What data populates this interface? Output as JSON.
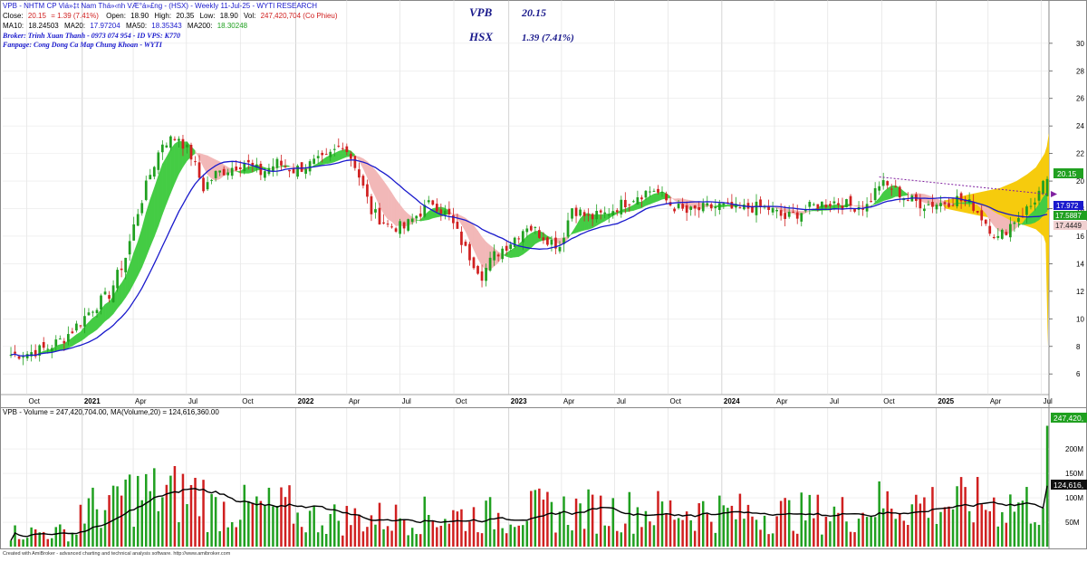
{
  "header": {
    "line1": "VPB - NHTM CP Viá»‡t Nam Thá»‹nh VÆ°á»£ng - (HSX) - Weekly 11-Jul-25 - WYTI RESEARCH",
    "close_label": "Close:",
    "close_value": "20.15",
    "change_value": "= 1.39  (7.41%)",
    "open_label": "Open:",
    "open_value": "18.90",
    "high_label": "High:",
    "high_value": "20.35",
    "low_label": "Low:",
    "low_value": "18.90",
    "vol_label": "Vol:",
    "vol_value": "247,420,704 (Co Phieu)",
    "ma10_label": "MA10:",
    "ma10_value": "18.24503",
    "ma20_label": "MA20:",
    "ma20_value": "17.97204",
    "ma50_label": "MA50:",
    "ma50_value": "18.35343",
    "ma200_label": "MA200:",
    "ma200_value": "18.30248",
    "broker": "Broker: Trinh Xuan Thanh - 0973 074 954 - ID VPS: K770",
    "fanpage": "Fanpage: Cong Dong Ca Map Chung Khoan - WYTI",
    "ticker": "VPB",
    "ticker_price": "20.15",
    "exchange": "HSX",
    "exchange_change": "1.39 (7.41%)"
  },
  "volume_header": "VPB - Volume = 247,420,704.00, MA(Volume,20) = 124,616,360.00",
  "footer": "Created with AmiBroker - advanced charting and technical analysis software. http://www.amibroker.com",
  "price_tags": {
    "last": "20.15",
    "ma_a": "17.972",
    "ma_b": "17.5887",
    "ma_c": "17.4449"
  },
  "volume_tags": {
    "last": "247,420,",
    "ma": "124,616,"
  },
  "colors": {
    "up": "#20a020",
    "down": "#d02020",
    "ma_blue": "#1a1acc",
    "band_green": "#44cc44",
    "band_pink": "#f2b8b8",
    "profile": "#f5c800",
    "trendline": "#8020a0",
    "vol_ma": "#000000",
    "tag_green": "#20a020",
    "tag_blue": "#1a1acc"
  },
  "chart_data": [
    {
      "type": "candlestick",
      "title": "VPB - NHTM CP Viá»‡t Nam Thá»‹nh VÆ°á»£ng - (HSX) - Weekly 11-Jul-25",
      "timeframe": "weekly",
      "x_ticks": [
        "Oct",
        "2021",
        "Apr",
        "Jul",
        "Oct",
        "2022",
        "Apr",
        "Jul",
        "Oct",
        "2023",
        "Apr",
        "Jul",
        "Oct",
        "2024",
        "Apr",
        "Jul",
        "Oct",
        "2025",
        "Apr",
        "Jul"
      ],
      "y_ticks": [
        6,
        8,
        10,
        12,
        14,
        16,
        18,
        20,
        22,
        24,
        26,
        28,
        30
      ],
      "ylim": [
        4.7,
        31.5
      ],
      "price_path": [
        [
          "2020-09-04",
          7.4
        ],
        [
          "2020-10-02",
          7.5
        ],
        [
          "2020-11-06",
          7.9
        ],
        [
          "2020-12-04",
          8.6
        ],
        [
          "2020-12-25",
          9.5
        ],
        [
          "2021-01-22",
          10.8
        ],
        [
          "2021-02-19",
          11.8
        ],
        [
          "2021-03-19",
          14.5
        ],
        [
          "2021-04-09",
          17.8
        ],
        [
          "2021-04-30",
          20.5
        ],
        [
          "2021-05-21",
          22.8
        ],
        [
          "2021-06-18",
          23.2
        ],
        [
          "2021-07-09",
          21.8
        ],
        [
          "2021-07-30",
          19.5
        ],
        [
          "2021-08-20",
          20.5
        ],
        [
          "2021-09-17",
          21.0
        ],
        [
          "2021-10-08",
          21.4
        ],
        [
          "2021-11-05",
          20.6
        ],
        [
          "2021-12-03",
          21.3
        ],
        [
          "2021-12-31",
          20.8
        ],
        [
          "2022-01-28",
          21.2
        ],
        [
          "2022-02-25",
          21.6
        ],
        [
          "2022-03-25",
          22.8
        ],
        [
          "2022-04-15",
          21.2
        ],
        [
          "2022-05-13",
          17.8
        ],
        [
          "2022-06-10",
          16.8
        ],
        [
          "2022-07-08",
          16.6
        ],
        [
          "2022-07-29",
          17.5
        ],
        [
          "2022-08-26",
          18.5
        ],
        [
          "2022-09-23",
          17.4
        ],
        [
          "2022-10-21",
          15.0
        ],
        [
          "2022-11-18",
          13.2
        ],
        [
          "2022-12-09",
          14.6
        ],
        [
          "2023-01-06",
          15.6
        ],
        [
          "2023-02-03",
          16.8
        ],
        [
          "2023-03-03",
          16.0
        ],
        [
          "2023-03-31",
          15.3
        ],
        [
          "2023-04-21",
          18.1
        ],
        [
          "2023-05-19",
          17.3
        ],
        [
          "2023-06-16",
          17.6
        ],
        [
          "2023-07-14",
          18.3
        ],
        [
          "2023-08-11",
          19.0
        ],
        [
          "2023-09-08",
          19.4
        ],
        [
          "2023-10-06",
          18.3
        ],
        [
          "2023-11-03",
          17.7
        ],
        [
          "2023-12-01",
          18.0
        ],
        [
          "2023-12-29",
          18.2
        ],
        [
          "2024-01-26",
          17.9
        ],
        [
          "2024-02-23",
          18.1
        ],
        [
          "2024-03-22",
          18.0
        ],
        [
          "2024-04-19",
          17.3
        ],
        [
          "2024-05-17",
          17.8
        ],
        [
          "2024-06-14",
          18.3
        ],
        [
          "2024-07-12",
          18.5
        ],
        [
          "2024-08-09",
          18.2
        ],
        [
          "2024-09-06",
          18.2
        ],
        [
          "2024-09-27",
          19.8
        ],
        [
          "2024-10-18",
          19.5
        ],
        [
          "2024-11-15",
          18.7
        ],
        [
          "2024-12-13",
          18.3
        ],
        [
          "2025-01-10",
          18.4
        ],
        [
          "2025-02-07",
          18.7
        ],
        [
          "2025-03-07",
          18.2
        ],
        [
          "2025-03-28",
          17.0
        ],
        [
          "2025-04-18",
          15.8
        ],
        [
          "2025-05-16",
          17.2
        ],
        [
          "2025-06-13",
          18.2
        ],
        [
          "2025-07-11",
          20.15
        ]
      ],
      "bands": {
        "ma10": "18.24503",
        "ma20": "17.97204",
        "ma50": "18.35343",
        "ma200": "18.30248"
      },
      "annotations": [
        "VPB 20.15",
        "HSX 1.39 (7.41%)"
      ]
    },
    {
      "type": "bar",
      "title": "VPB - Volume",
      "y_ticks": [
        "50M",
        "100M",
        "150M",
        "200M"
      ],
      "ylim": [
        0,
        265000000
      ],
      "last_volume": 247420704,
      "ma20_last": 124616360
    }
  ]
}
